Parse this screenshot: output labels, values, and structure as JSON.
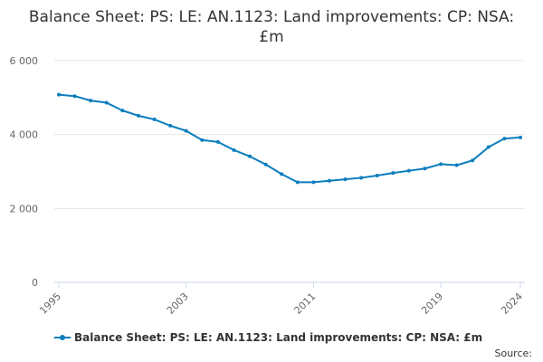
{
  "chart_data": {
    "type": "line",
    "title": "Balance Sheet: PS: LE: AN.1123: Land improvements: CP: NSA: £m",
    "xlabel": "",
    "ylabel": "",
    "xlim": [
      1995,
      2024
    ],
    "ylim": [
      0,
      6000
    ],
    "y_ticks": [
      {
        "value": 0,
        "label": "0"
      },
      {
        "value": 2000,
        "label": "2 000"
      },
      {
        "value": 4000,
        "label": "4 000"
      },
      {
        "value": 6000,
        "label": "6 000"
      }
    ],
    "x_ticks": [
      {
        "value": 1995,
        "label": "1995"
      },
      {
        "value": 2003,
        "label": "2003"
      },
      {
        "value": 2011,
        "label": "2011"
      },
      {
        "value": 2019,
        "label": "2019"
      },
      {
        "value": 2024,
        "label": "2024"
      }
    ],
    "grid": "horizontal",
    "legend_position": "bottom-left",
    "series": [
      {
        "name": "Balance Sheet: PS: LE: AN.1123: Land improvements: CP: NSA: £m",
        "color": "#0b7dbd",
        "x": [
          1995,
          1996,
          1997,
          1998,
          1999,
          2000,
          2001,
          2002,
          2003,
          2004,
          2005,
          2006,
          2007,
          2008,
          2009,
          2010,
          2011,
          2012,
          2013,
          2014,
          2015,
          2016,
          2017,
          2018,
          2019,
          2020,
          2021,
          2022,
          2023,
          2024
        ],
        "values": [
          5080,
          5040,
          4920,
          4860,
          4650,
          4510,
          4410,
          4240,
          4100,
          3850,
          3800,
          3580,
          3410,
          3190,
          2930,
          2710,
          2710,
          2750,
          2790,
          2830,
          2890,
          2960,
          3020,
          3080,
          3200,
          3170,
          3300,
          3660,
          3890,
          3920
        ]
      }
    ]
  },
  "legend": {
    "label": "Balance Sheet: PS: LE: AN.1123: Land improvements: CP: NSA: £m"
  },
  "source": {
    "label": "Source:"
  },
  "colors": {
    "series": "#0b7dbd",
    "grid": "#e6e6e6",
    "axis_text": "#666666"
  }
}
